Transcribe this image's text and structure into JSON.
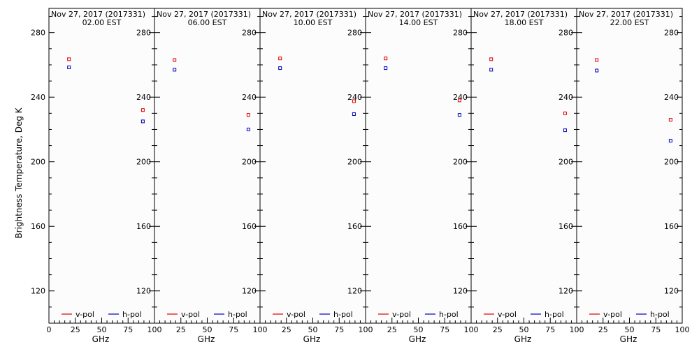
{
  "chart_data": {
    "type": "scatter",
    "ylabel": "Brightness Temperature, Deg K",
    "xlabel": "GHz",
    "xlim": [
      0,
      100
    ],
    "ylim": [
      100,
      295
    ],
    "xticks": [
      "0",
      "25",
      "50",
      "75",
      "100"
    ],
    "yticks": [
      "120",
      "160",
      "200",
      "240",
      "280"
    ],
    "legend": {
      "placement": "bottom",
      "entries": [
        "v-pol",
        "h-pol"
      ]
    },
    "colors": {
      "v-pol": "#dd0000",
      "h-pol": "#0000bb"
    },
    "panels": [
      {
        "title_line1": "Nov 27, 2017 (2017331)",
        "title_line2": "02.00 EST",
        "series": [
          {
            "name": "v-pol",
            "x": [
              19,
              89
            ],
            "y": [
              263.5,
              232
            ]
          },
          {
            "name": "h-pol",
            "x": [
              19,
              89
            ],
            "y": [
              258.5,
              225
            ]
          }
        ]
      },
      {
        "title_line1": "Nov 27, 2017 (2017331)",
        "title_line2": "06.00 EST",
        "series": [
          {
            "name": "v-pol",
            "x": [
              19,
              89
            ],
            "y": [
              263,
              229
            ]
          },
          {
            "name": "h-pol",
            "x": [
              19,
              89
            ],
            "y": [
              257,
              220
            ]
          }
        ]
      },
      {
        "title_line1": "Nov 27, 2017 (2017331)",
        "title_line2": "10.00 EST",
        "series": [
          {
            "name": "v-pol",
            "x": [
              19,
              89
            ],
            "y": [
              264,
              237.5
            ]
          },
          {
            "name": "h-pol",
            "x": [
              19,
              89
            ],
            "y": [
              258,
              229.5
            ]
          }
        ]
      },
      {
        "title_line1": "Nov 27, 2017 (2017331)",
        "title_line2": "14.00 EST",
        "series": [
          {
            "name": "v-pol",
            "x": [
              19,
              89
            ],
            "y": [
              264,
              238
            ]
          },
          {
            "name": "h-pol",
            "x": [
              19,
              89
            ],
            "y": [
              258,
              229
            ]
          }
        ]
      },
      {
        "title_line1": "Nov 27, 2017 (2017331)",
        "title_line2": "18.00 EST",
        "series": [
          {
            "name": "v-pol",
            "x": [
              19,
              89
            ],
            "y": [
              263.5,
              230
            ]
          },
          {
            "name": "h-pol",
            "x": [
              19,
              89
            ],
            "y": [
              257,
              219.5
            ]
          }
        ]
      },
      {
        "title_line1": "Nov 27, 2017 (2017331)",
        "title_line2": "22.00 EST",
        "series": [
          {
            "name": "v-pol",
            "x": [
              19,
              89
            ],
            "y": [
              263,
              226
            ]
          },
          {
            "name": "h-pol",
            "x": [
              19,
              89
            ],
            "y": [
              256.5,
              213
            ]
          }
        ]
      }
    ]
  }
}
